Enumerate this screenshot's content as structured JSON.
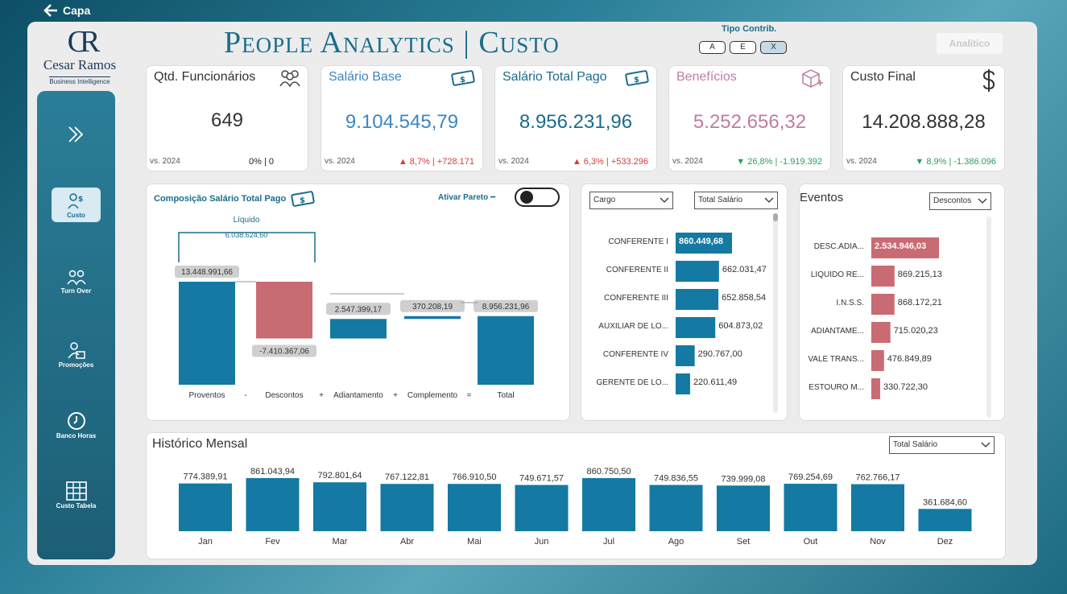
{
  "nav": {
    "back_label": "Capa"
  },
  "logo": {
    "monogram": "CR",
    "name": "Cesar Ramos",
    "subtitle": "Business Intelligence"
  },
  "header": {
    "title": "People Analytics | Custo",
    "tipo_label": "Tipo Contrib.",
    "tipo_options": [
      "A",
      "E",
      "X"
    ],
    "tipo_selected": "X",
    "analitico_label": "Analítico"
  },
  "sidebar": {
    "items": [
      {
        "label": "Custo",
        "icon": "person-dollar-icon",
        "active": true
      },
      {
        "label": "Turn Over",
        "icon": "people-cycle-icon",
        "active": false
      },
      {
        "label": "Promoções",
        "icon": "person-promo-icon",
        "active": false
      },
      {
        "label": "Banco Horas",
        "icon": "clock-icon",
        "active": false
      },
      {
        "label": "Custo Tabela",
        "icon": "table-icon",
        "active": false
      }
    ]
  },
  "kpis": [
    {
      "label": "Qtd. Funcionários",
      "value": "649",
      "vs": "vs. 2024",
      "delta": "0% | 0",
      "trend": "flat",
      "icon": "people-icon",
      "label_color": "#333333",
      "value_color": "#333333"
    },
    {
      "label": "Salário Base",
      "value": "9.104.545,79",
      "vs": "vs. 2024",
      "delta": "8,7% | +728.171",
      "trend": "up",
      "icon": "money-icon",
      "label_color": "#3a86c4",
      "value_color": "#3a86c4"
    },
    {
      "label": "Salário Total Pago",
      "value": "8.956.231,96",
      "vs": "vs. 2024",
      "delta": "6,3% | +533.296",
      "trend": "up",
      "icon": "money-icon",
      "label_color": "#1a6d8c",
      "value_color": "#1a6d8c"
    },
    {
      "label": "Benefícios",
      "value": "5.252.656,32",
      "vs": "vs. 2024",
      "delta": "26,8% | -1.919.392",
      "trend": "down",
      "icon": "box-plus-icon",
      "label_color": "#c27ba0",
      "value_color": "#c27ba0"
    },
    {
      "label": "Custo Final",
      "value": "14.208.888,28",
      "vs": "vs. 2024",
      "delta": "8,9% | -1.386.096",
      "trend": "down",
      "icon": "dollar-icon",
      "label_color": "#333333",
      "value_color": "#333333"
    }
  ],
  "colors": {
    "bar": "#1479a3",
    "negative": "#c96b73",
    "up": "#d63a3a",
    "down": "#2a9d5c"
  },
  "composicao": {
    "title": "Composição Salário Total Pago",
    "pareto_label": "Ativar Pareto",
    "liquido_label": "Líquido",
    "liquido_value": "6.038.624,60"
  },
  "cargo_panel": {
    "dropdown1": "Cargo",
    "dropdown2": "Total Salário"
  },
  "eventos_panel": {
    "title": "Eventos",
    "dropdown": "Descontos"
  },
  "historico": {
    "title": "Histórico Mensal",
    "dropdown": "Total Salário"
  },
  "chart_data": [
    {
      "type": "bar",
      "name": "composicao",
      "categories": [
        "Proventos",
        "Descontos",
        "Adiantamento",
        "Complemento",
        "Total"
      ],
      "operators": [
        "-",
        "+",
        "+",
        "="
      ],
      "values": [
        13448991.66,
        -7410367.06,
        2547399.17,
        370208.19,
        8956231.96
      ],
      "labels": [
        "13.448.991,66",
        "-7.410.367,06",
        "2.547.399,17",
        "370.208,19",
        "8.956.231,96"
      ]
    },
    {
      "type": "bar",
      "name": "cargo",
      "categories": [
        "CONFERENTE I",
        "CONFERENTE II",
        "CONFERENTE III",
        "AUXILIAR DE LO...",
        "CONFERENTE IV",
        "GERENTE DE LO..."
      ],
      "values": [
        860449.68,
        662031.47,
        652858.54,
        604873.02,
        290767.0,
        220611.49
      ],
      "labels": [
        "860.449,68",
        "662.031,47",
        "652.858,54",
        "604.873,02",
        "290.767,00",
        "220.611,49"
      ]
    },
    {
      "type": "bar",
      "name": "eventos",
      "categories": [
        "DESC.ADIA...",
        "LIQUIDO RE...",
        "I.N.S.S.",
        "ADIANTAME...",
        "VALE TRANS...",
        "ESTOURO M..."
      ],
      "values": [
        2534946.03,
        869215.13,
        868172.21,
        715020.23,
        476849.89,
        330722.3
      ],
      "labels": [
        "2.534.946,03",
        "869.215,13",
        "868.172,21",
        "715.020,23",
        "476.849,89",
        "330.722,30"
      ]
    },
    {
      "type": "bar",
      "name": "historico",
      "categories": [
        "Jan",
        "Fev",
        "Mar",
        "Abr",
        "Mai",
        "Jun",
        "Jul",
        "Ago",
        "Set",
        "Out",
        "Nov",
        "Dez"
      ],
      "values": [
        774389.91,
        861043.94,
        792801.64,
        767122.81,
        766910.5,
        749671.57,
        860750.5,
        749836.55,
        739999.08,
        769254.69,
        762766.17,
        361684.6
      ],
      "labels": [
        "774.389,91",
        "861.043,94",
        "792.801,64",
        "767.122,81",
        "766.910,50",
        "749.671,57",
        "860.750,50",
        "749.836,55",
        "739.999,08",
        "769.254,69",
        "762.766,17",
        "361.684,60"
      ]
    }
  ]
}
